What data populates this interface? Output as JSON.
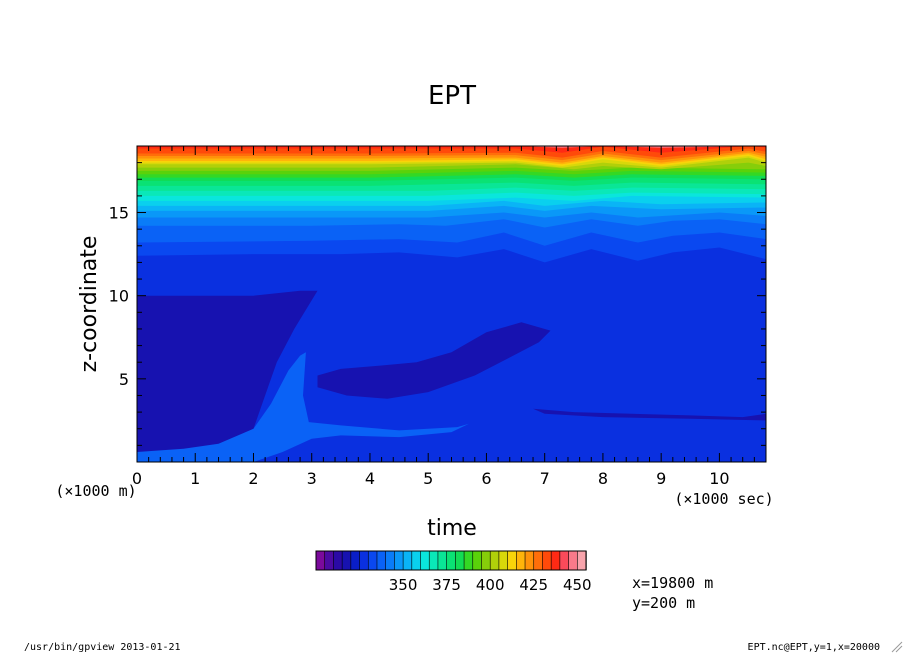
{
  "chart_data": {
    "type": "heatmap",
    "title": "EPT",
    "xlabel": "time",
    "ylabel": "z-coordinate",
    "x_unit": "(×1000 sec)",
    "y_unit": "(×1000 m)",
    "xlim": [
      0,
      10.8
    ],
    "ylim": [
      0,
      19
    ],
    "x_ticks": [
      0,
      1,
      2,
      3,
      4,
      5,
      6,
      7,
      8,
      9,
      10
    ],
    "y_ticks": [
      5,
      10,
      15
    ],
    "colorbar": {
      "levels": [
        300,
        305,
        310,
        315,
        320,
        325,
        330,
        335,
        340,
        345,
        350,
        355,
        360,
        365,
        370,
        375,
        380,
        385,
        390,
        395,
        400,
        405,
        410,
        415,
        420,
        425,
        430,
        435,
        440,
        445,
        450
      ],
      "tick_labels": [
        "350",
        "375",
        "400",
        "425",
        "450"
      ],
      "colors": [
        "#7b0a9c",
        "#4c0aa2",
        "#2a0aa6",
        "#1712b0",
        "#0a1ec8",
        "#0a30e0",
        "#0a48f0",
        "#0a62f6",
        "#0a7cf8",
        "#0a98f8",
        "#0ab4f6",
        "#0ad0ee",
        "#0ae6dc",
        "#0ae8b8",
        "#0ae696",
        "#0ae274",
        "#12dc54",
        "#34d824",
        "#5ad20a",
        "#86ce0a",
        "#b0d00a",
        "#d8d80a",
        "#f8d40a",
        "#ffb40a",
        "#ff920a",
        "#ff6e0a",
        "#ff4a0a",
        "#ff2a14",
        "#fa4a5a",
        "#f87a8a",
        "#f8a4ac"
      ]
    },
    "annotations": [
      "x=19800 m",
      "y=200 m"
    ],
    "bands": [
      {
        "level": 345,
        "color": "#0a48f0",
        "profile": [
          [
            0,
            12.4
          ],
          [
            2,
            12.5
          ],
          [
            3.5,
            12.5
          ],
          [
            4.5,
            12.6
          ],
          [
            5.5,
            12.3
          ],
          [
            6.3,
            12.8
          ],
          [
            7,
            12.0
          ],
          [
            7.8,
            12.8
          ],
          [
            8.6,
            12.1
          ],
          [
            9.2,
            12.6
          ],
          [
            10,
            12.9
          ],
          [
            10.8,
            12.2
          ]
        ]
      },
      {
        "level": 350,
        "color": "#0a62f6",
        "profile": [
          [
            0,
            13.2
          ],
          [
            3,
            13.3
          ],
          [
            4.5,
            13.4
          ],
          [
            5.5,
            13.2
          ],
          [
            6.3,
            13.8
          ],
          [
            7,
            13.0
          ],
          [
            7.8,
            13.8
          ],
          [
            8.6,
            13.2
          ],
          [
            9.2,
            13.6
          ],
          [
            10,
            13.8
          ],
          [
            10.8,
            13.4
          ]
        ]
      },
      {
        "level": 355,
        "color": "#0a7cf8",
        "profile": [
          [
            0,
            14.2
          ],
          [
            3,
            14.2
          ],
          [
            4.5,
            14.3
          ],
          [
            5.3,
            14.2
          ],
          [
            6.3,
            14.6
          ],
          [
            7,
            14.1
          ],
          [
            7.8,
            14.6
          ],
          [
            8.6,
            14.2
          ],
          [
            9.2,
            14.5
          ],
          [
            10,
            14.6
          ],
          [
            10.8,
            14.3
          ]
        ]
      },
      {
        "level": 360,
        "color": "#0a98f8",
        "profile": [
          [
            0,
            14.7
          ],
          [
            3,
            14.7
          ],
          [
            5,
            14.7
          ],
          [
            6.3,
            15.0
          ],
          [
            7,
            14.7
          ],
          [
            7.8,
            15.0
          ],
          [
            8.6,
            14.7
          ],
          [
            10,
            15.0
          ],
          [
            10.8,
            14.8
          ]
        ]
      },
      {
        "level": 365,
        "color": "#0ab4f6",
        "profile": [
          [
            0,
            15.1
          ],
          [
            3,
            15.1
          ],
          [
            5,
            15.1
          ],
          [
            6.3,
            15.4
          ],
          [
            7,
            15.1
          ],
          [
            7.8,
            15.4
          ],
          [
            9,
            15.2
          ],
          [
            10.8,
            15.3
          ]
        ]
      },
      {
        "level": 370,
        "color": "#0ad0ee",
        "profile": [
          [
            0,
            15.4
          ],
          [
            3,
            15.4
          ],
          [
            5,
            15.4
          ],
          [
            6.3,
            15.7
          ],
          [
            7,
            15.4
          ],
          [
            8,
            15.7
          ],
          [
            9,
            15.5
          ],
          [
            10.8,
            15.6
          ]
        ]
      },
      {
        "level": 375,
        "color": "#0ae6dc",
        "profile": [
          [
            0,
            15.7
          ],
          [
            3,
            15.7
          ],
          [
            5,
            15.7
          ],
          [
            6.5,
            15.9
          ],
          [
            7.5,
            15.7
          ],
          [
            8.5,
            16.0
          ],
          [
            10.8,
            15.9
          ]
        ]
      },
      {
        "level": 380,
        "color": "#0ae8b8",
        "profile": [
          [
            0,
            16.0
          ],
          [
            3,
            16.0
          ],
          [
            5,
            16.0
          ],
          [
            6.5,
            16.2
          ],
          [
            7.5,
            16.0
          ],
          [
            8.5,
            16.2
          ],
          [
            10.8,
            16.1
          ]
        ]
      },
      {
        "level": 385,
        "color": "#0ae696",
        "profile": [
          [
            0,
            16.3
          ],
          [
            3,
            16.3
          ],
          [
            5,
            16.3
          ],
          [
            6.5,
            16.5
          ],
          [
            7.5,
            16.3
          ],
          [
            8.5,
            16.5
          ],
          [
            10.8,
            16.4
          ]
        ]
      },
      {
        "level": 390,
        "color": "#0ae274",
        "profile": [
          [
            0,
            16.6
          ],
          [
            4,
            16.6
          ],
          [
            6.5,
            16.8
          ],
          [
            7.5,
            16.6
          ],
          [
            8.5,
            16.8
          ],
          [
            10.8,
            16.7
          ]
        ]
      },
      {
        "level": 395,
        "color": "#12dc54",
        "profile": [
          [
            0,
            16.9
          ],
          [
            4,
            16.9
          ],
          [
            6.5,
            17.1
          ],
          [
            7.5,
            16.9
          ],
          [
            8.5,
            17.1
          ],
          [
            10.8,
            17.0
          ]
        ]
      },
      {
        "level": 400,
        "color": "#34d824",
        "profile": [
          [
            0,
            17.1
          ],
          [
            4,
            17.1
          ],
          [
            6.5,
            17.3
          ],
          [
            7.5,
            17.1
          ],
          [
            8.5,
            17.3
          ],
          [
            10.8,
            17.2
          ]
        ]
      },
      {
        "level": 405,
        "color": "#5ad20a",
        "profile": [
          [
            0,
            17.3
          ],
          [
            4,
            17.3
          ],
          [
            6.5,
            17.5
          ],
          [
            7.5,
            17.3
          ],
          [
            8.5,
            17.5
          ],
          [
            10.8,
            17.4
          ]
        ]
      },
      {
        "level": 410,
        "color": "#86ce0a",
        "profile": [
          [
            0,
            17.5
          ],
          [
            4,
            17.5
          ],
          [
            6.5,
            17.7
          ],
          [
            7.5,
            17.5
          ],
          [
            8.5,
            17.7
          ],
          [
            10.8,
            17.6
          ]
        ]
      },
      {
        "level": 415,
        "color": "#b0d00a",
        "profile": [
          [
            0,
            17.7
          ],
          [
            4,
            17.7
          ],
          [
            6.5,
            17.9
          ],
          [
            7.5,
            17.6
          ],
          [
            8,
            17.8
          ],
          [
            9,
            17.6
          ],
          [
            10.5,
            18.0
          ],
          [
            10.8,
            17.8
          ]
        ]
      },
      {
        "level": 420,
        "color": "#d8d80a",
        "profile": [
          [
            0,
            17.9
          ],
          [
            4,
            17.9
          ],
          [
            6.5,
            18.0
          ],
          [
            7.3,
            17.7
          ],
          [
            8,
            18.0
          ],
          [
            9,
            17.7
          ],
          [
            10.5,
            18.3
          ],
          [
            10.8,
            18.0
          ]
        ]
      },
      {
        "level": 425,
        "color": "#f8d40a",
        "profile": [
          [
            0,
            18.0
          ],
          [
            4,
            18.0
          ],
          [
            6.5,
            18.1
          ],
          [
            7.3,
            17.8
          ],
          [
            8,
            18.2
          ],
          [
            9,
            17.8
          ],
          [
            10.5,
            18.4
          ],
          [
            10.8,
            18.1
          ]
        ]
      },
      {
        "level": 430,
        "color": "#ffb40a",
        "profile": [
          [
            0,
            18.1
          ],
          [
            4,
            18.1
          ],
          [
            6.5,
            18.2
          ],
          [
            7.3,
            17.9
          ],
          [
            8,
            18.3
          ],
          [
            9,
            17.9
          ],
          [
            10.5,
            18.5
          ],
          [
            10.8,
            18.2
          ]
        ]
      },
      {
        "level": 435,
        "color": "#ff920a",
        "profile": [
          [
            0,
            18.25
          ],
          [
            4,
            18.25
          ],
          [
            6.5,
            18.3
          ],
          [
            7.3,
            18.0
          ],
          [
            8,
            18.4
          ],
          [
            9,
            18.0
          ],
          [
            10.5,
            18.6
          ],
          [
            10.8,
            18.35
          ]
        ]
      },
      {
        "level": 440,
        "color": "#ff6e0a",
        "profile": [
          [
            0,
            18.4
          ],
          [
            4,
            18.4
          ],
          [
            6.5,
            18.45
          ],
          [
            7.3,
            18.15
          ],
          [
            8,
            18.55
          ],
          [
            9,
            18.15
          ],
          [
            10.5,
            18.7
          ],
          [
            10.8,
            18.5
          ]
        ]
      },
      {
        "level": 445,
        "color": "#ff4a0a",
        "profile": [
          [
            0,
            18.55
          ],
          [
            4,
            18.55
          ],
          [
            6.5,
            18.6
          ],
          [
            7.3,
            18.3
          ],
          [
            8,
            18.7
          ],
          [
            9,
            18.3
          ],
          [
            10.5,
            18.85
          ],
          [
            10.8,
            18.65
          ]
        ]
      },
      {
        "level": 450,
        "color": "#ff2a14",
        "profile": [
          [
            0,
            18.85
          ],
          [
            4,
            18.85
          ],
          [
            6.5,
            18.85
          ],
          [
            7.3,
            18.6
          ],
          [
            8,
            18.95
          ],
          [
            9,
            18.6
          ],
          [
            10.5,
            19.0
          ],
          [
            10.8,
            18.9
          ]
        ]
      },
      {
        "level": 455,
        "color": "#f87a8a",
        "profile": [
          [
            0,
            19.0
          ],
          [
            4,
            19.0
          ],
          [
            6.5,
            19.0
          ],
          [
            7.3,
            18.9
          ],
          [
            8,
            19.0
          ],
          [
            9,
            18.9
          ],
          [
            10.8,
            19.0
          ]
        ]
      }
    ],
    "regions": [
      {
        "name": "cold-pool-lower",
        "color": "#1712b0",
        "points": [
          [
            0,
            0.4
          ],
          [
            0,
            10
          ],
          [
            1,
            10
          ],
          [
            2,
            10
          ],
          [
            2.8,
            10.3
          ],
          [
            3.1,
            10.3
          ],
          [
            2.7,
            8
          ],
          [
            2.4,
            6
          ],
          [
            2.2,
            4
          ],
          [
            2.0,
            2
          ],
          [
            1.4,
            1
          ],
          [
            0.8,
            0.7
          ],
          [
            0,
            0.4
          ]
        ]
      },
      {
        "name": "warm-surface-layer",
        "color": "#0a62f6",
        "points": [
          [
            0,
            0
          ],
          [
            0,
            0.6
          ],
          [
            0.8,
            0.8
          ],
          [
            1.4,
            1.1
          ],
          [
            2.0,
            2.0
          ],
          [
            2.3,
            3.5
          ],
          [
            2.6,
            5.5
          ],
          [
            2.8,
            6.4
          ],
          [
            2.9,
            6.6
          ],
          [
            2.85,
            4
          ],
          [
            2.95,
            2.4
          ],
          [
            3.5,
            2.2
          ],
          [
            4.5,
            1.9
          ],
          [
            5.5,
            2.1
          ],
          [
            5.7,
            2.3
          ],
          [
            5.4,
            1.8
          ],
          [
            4.5,
            1.5
          ],
          [
            3.5,
            1.6
          ],
          [
            3.0,
            1.4
          ],
          [
            2.5,
            0.6
          ],
          [
            2,
            0
          ],
          [
            0,
            0
          ]
        ]
      },
      {
        "name": "mid-pool",
        "color": "#1712b0",
        "points": [
          [
            3.1,
            5.2
          ],
          [
            3.5,
            5.6
          ],
          [
            4.2,
            5.8
          ],
          [
            4.8,
            6.0
          ],
          [
            5.4,
            6.6
          ],
          [
            6.0,
            7.8
          ],
          [
            6.6,
            8.4
          ],
          [
            7.1,
            7.9
          ],
          [
            6.9,
            7.2
          ],
          [
            6.3,
            6.1
          ],
          [
            5.8,
            5.2
          ],
          [
            5.0,
            4.2
          ],
          [
            4.3,
            3.8
          ],
          [
            3.6,
            4.0
          ],
          [
            3.1,
            4.5
          ],
          [
            3.1,
            5.2
          ]
        ]
      },
      {
        "name": "low-pool",
        "color": "#1712b0",
        "points": [
          [
            6.8,
            3.2
          ],
          [
            7.5,
            3.0
          ],
          [
            8.5,
            2.9
          ],
          [
            9.5,
            2.8
          ],
          [
            10.4,
            2.7
          ],
          [
            10.8,
            2.9
          ],
          [
            10.8,
            2.5
          ],
          [
            9.5,
            2.6
          ],
          [
            8,
            2.7
          ],
          [
            7,
            2.9
          ],
          [
            6.8,
            3.2
          ]
        ]
      }
    ],
    "grid": false
  },
  "footer": {
    "left": "/usr/bin/gpview  2013-01-21",
    "right": "EPT.nc@EPT,y=1,x=20000"
  }
}
